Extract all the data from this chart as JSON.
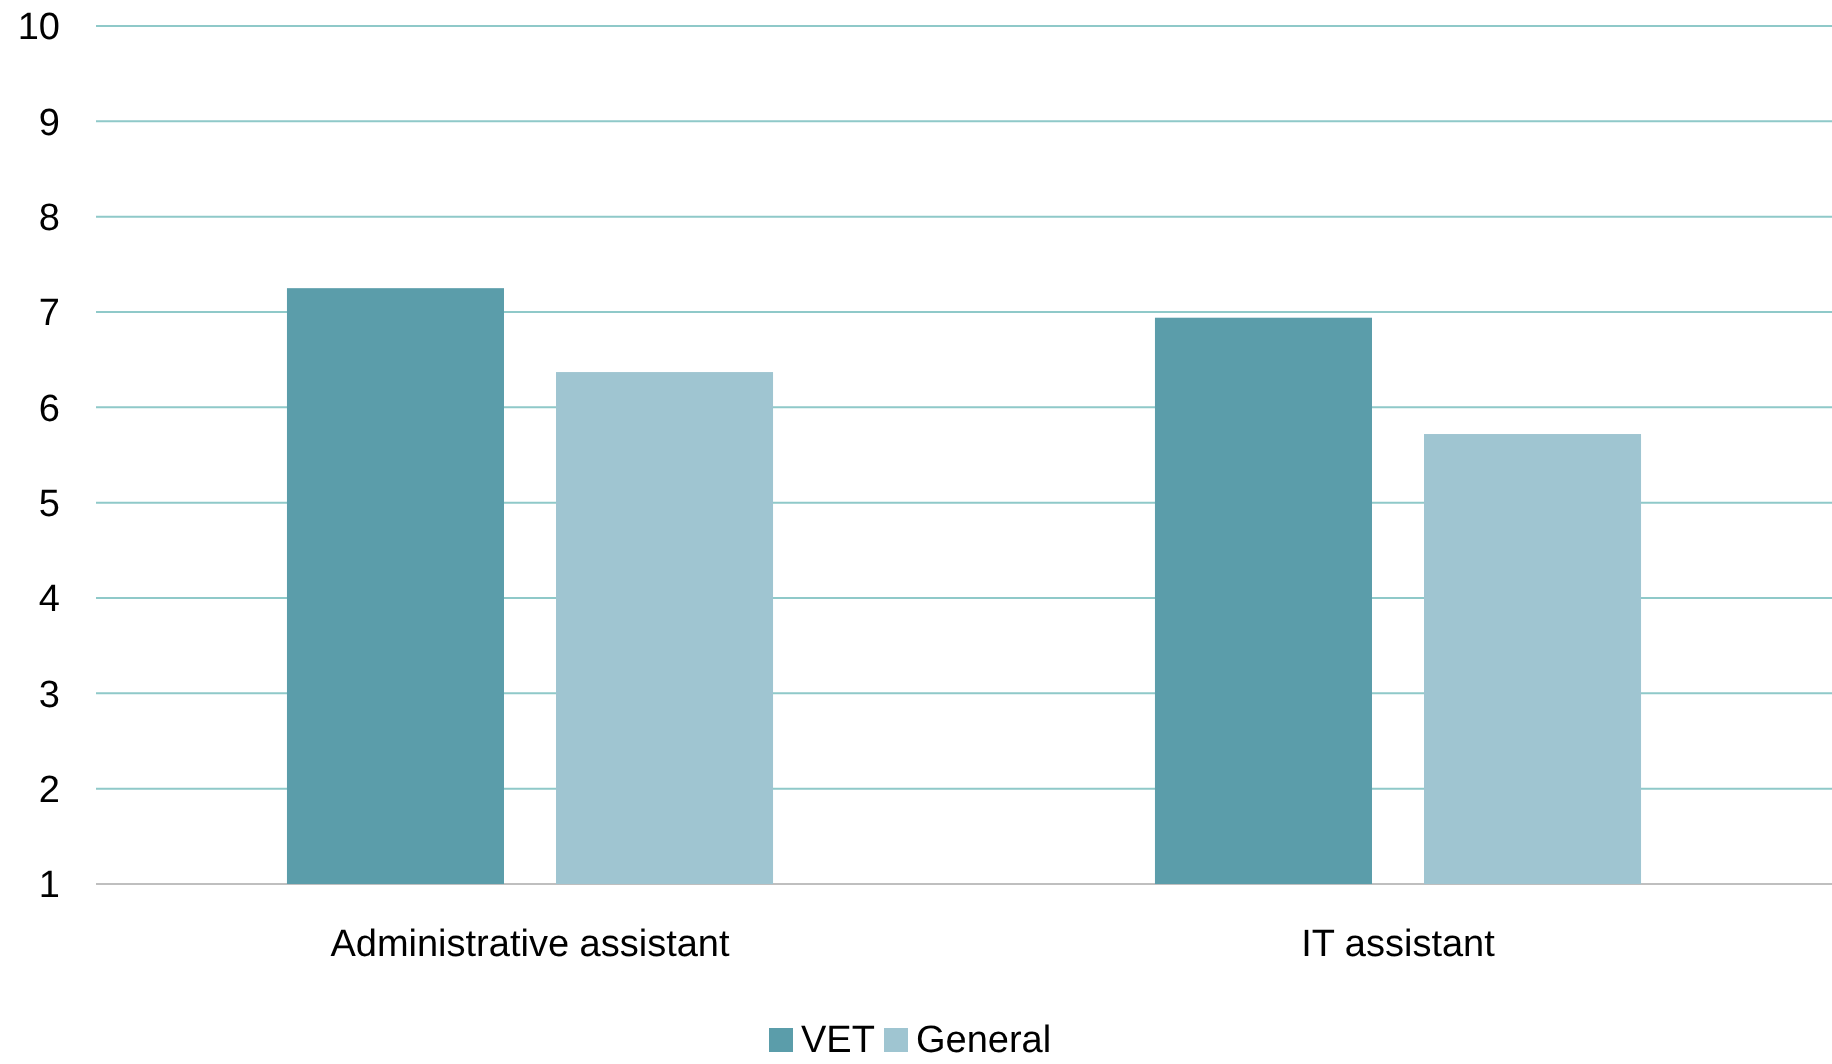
{
  "chart_data": {
    "type": "bar",
    "categories": [
      "Administrative assistant",
      "IT assistant"
    ],
    "series": [
      {
        "name": "VET",
        "color": "#5b9daa",
        "values": [
          7.25,
          6.94
        ]
      },
      {
        "name": "General",
        "color": "#9fc5d1",
        "values": [
          6.37,
          5.72
        ]
      }
    ],
    "ylim": [
      1,
      10
    ],
    "yticks": [
      1,
      2,
      3,
      4,
      5,
      6,
      7,
      8,
      9,
      10
    ],
    "grid": "y",
    "legend": "bottom"
  }
}
